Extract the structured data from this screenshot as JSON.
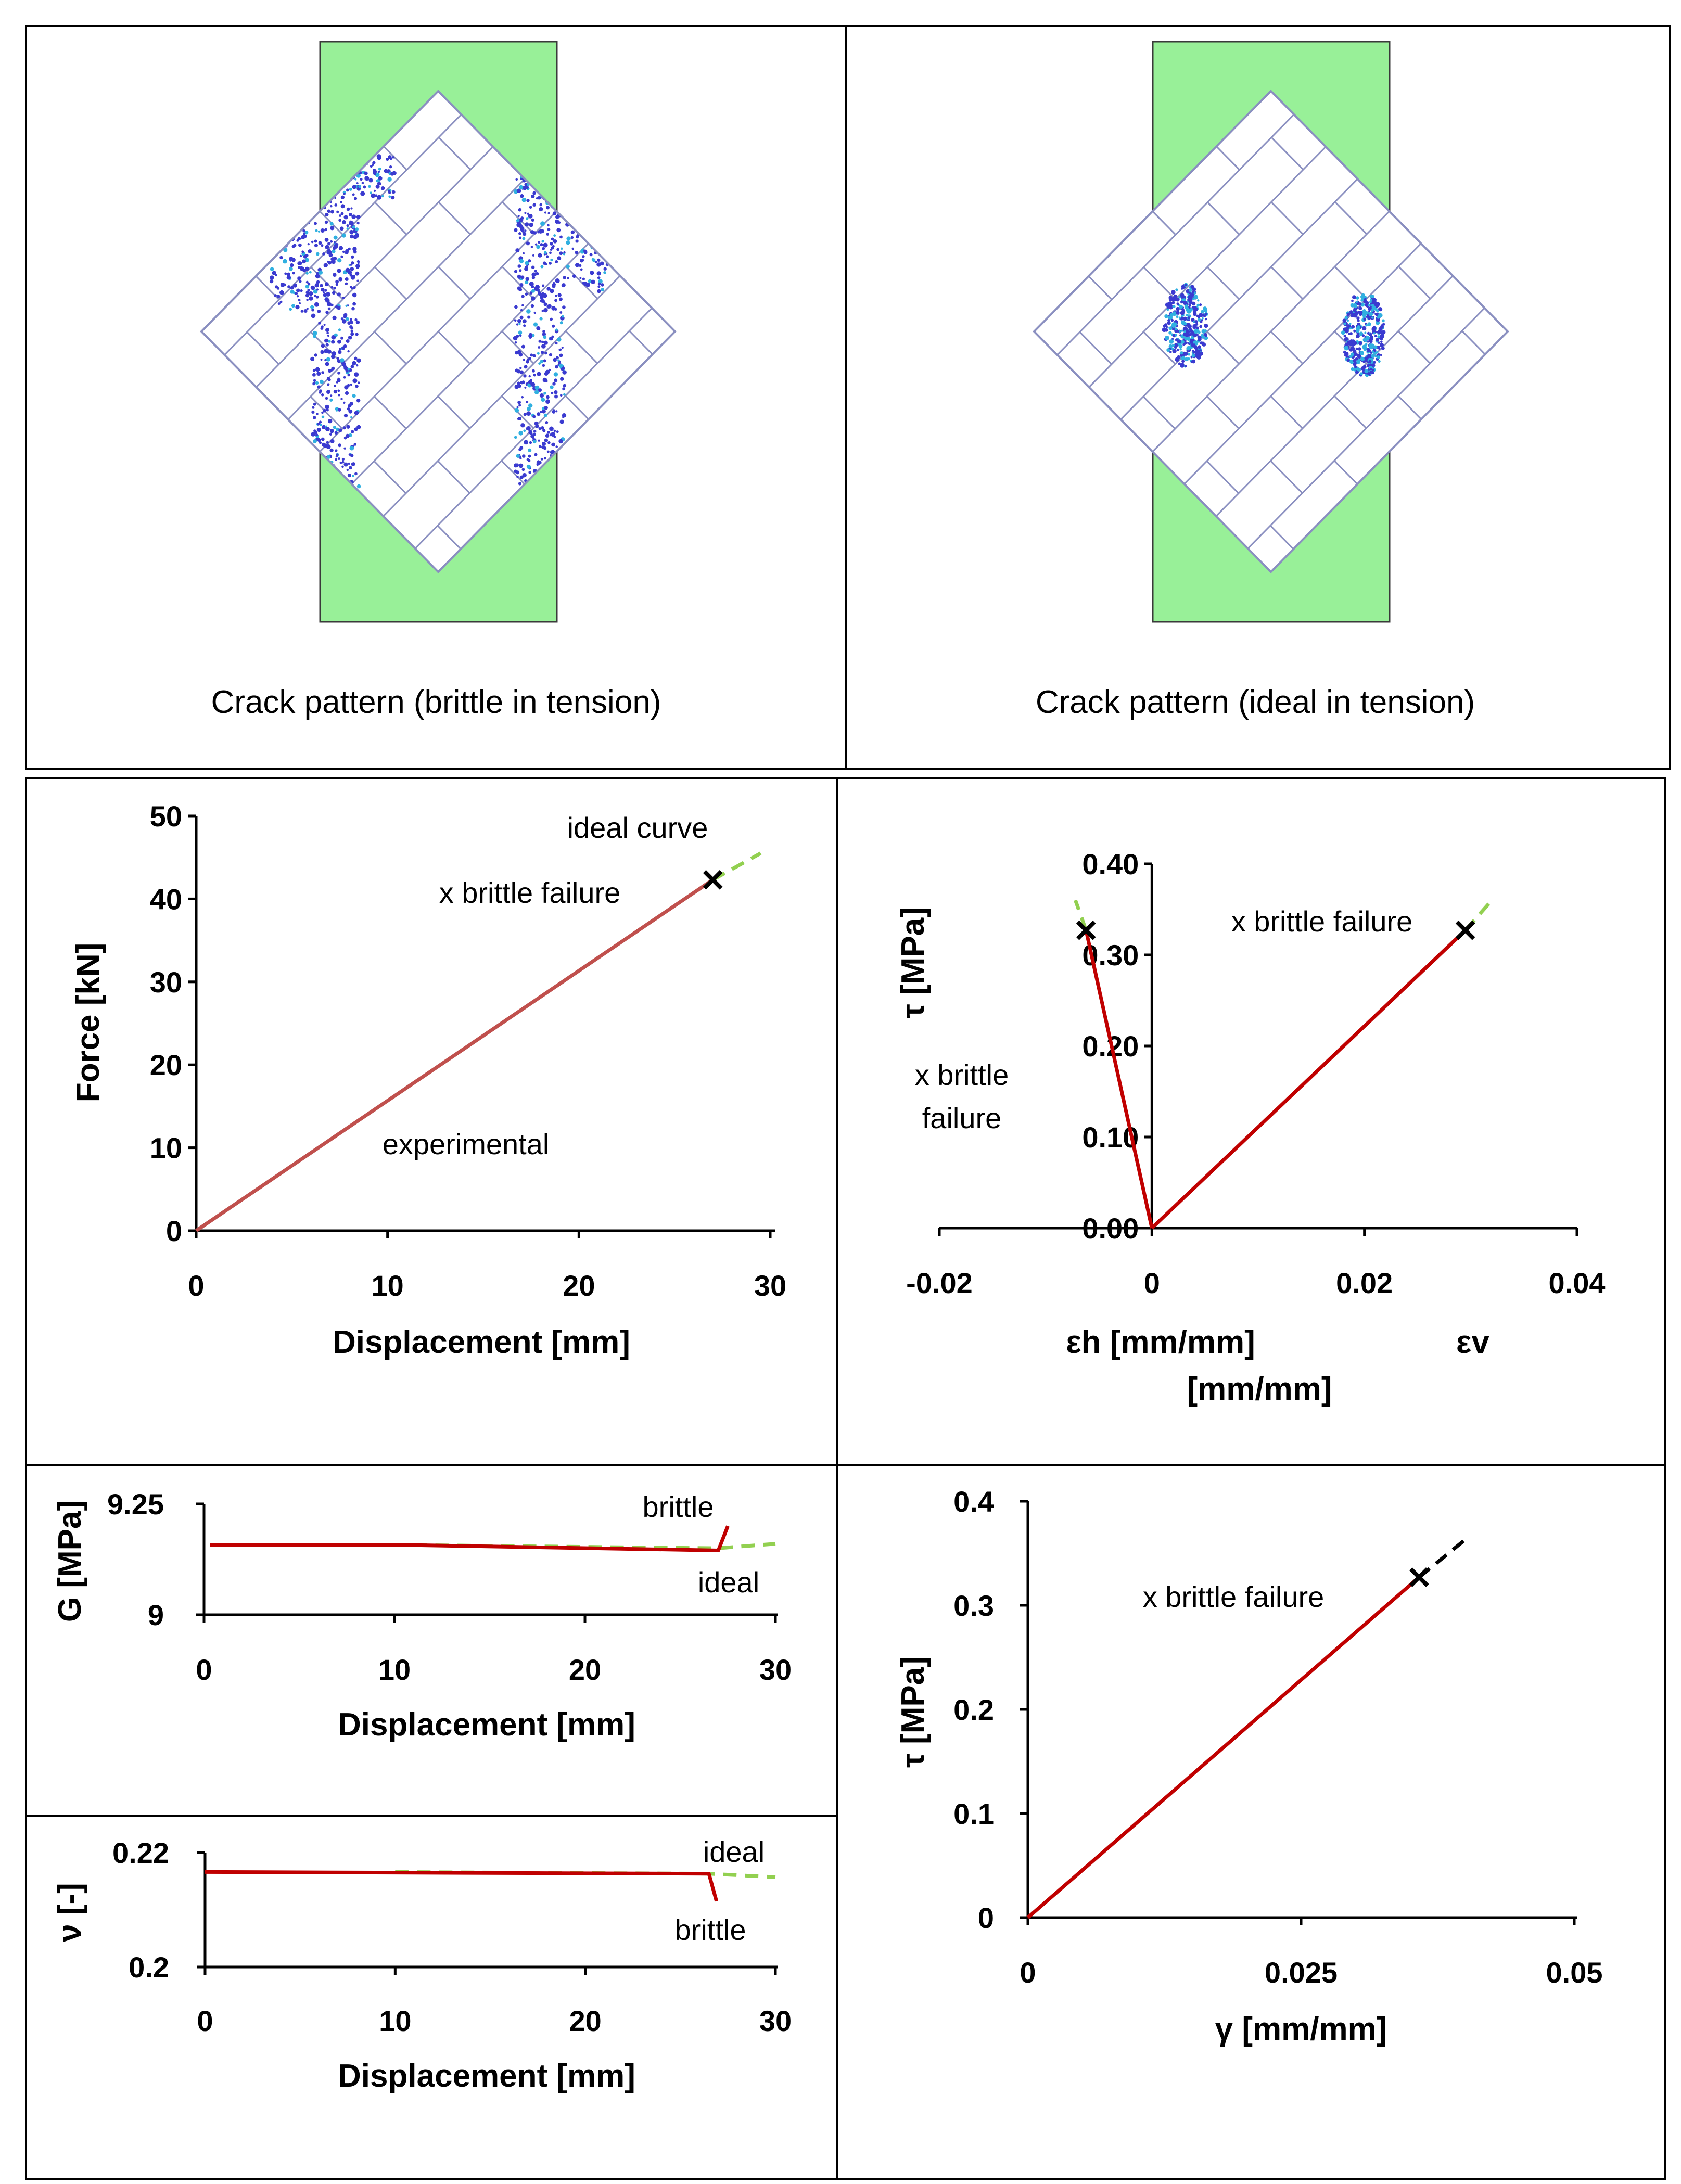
{
  "captions": {
    "left": "Crack pattern (brittle in tension)",
    "right": "Crack pattern (ideal in tension)"
  },
  "colors": {
    "experimental": "#c0504d",
    "brittle": "#c00000",
    "ideal": "#92d050",
    "support": "#98f098",
    "brick_edge": "#8a8fc0",
    "crack": "#3a3ad0"
  },
  "chart_data": [
    {
      "id": "force",
      "type": "line",
      "xlabel": "Displacement [mm]",
      "ylabel": "Force [kN]",
      "xlim": [
        0,
        30
      ],
      "ylim": [
        0,
        50
      ],
      "xticks": [
        "0",
        "10",
        "20",
        "30"
      ],
      "yticks": [
        "0",
        "10",
        "20",
        "30",
        "40",
        "50"
      ],
      "series": [
        {
          "name": "experimental",
          "style": "solid",
          "points": [
            [
              0,
              0
            ],
            [
              27,
              42.3
            ]
          ]
        },
        {
          "name": "ideal curve",
          "style": "dashed",
          "points": [
            [
              27,
              42.3
            ],
            [
              29.5,
              45.5
            ]
          ]
        }
      ],
      "failure_marker": [
        27,
        42.3
      ],
      "annotations": {
        "ideal": "ideal curve",
        "brittle": "x brittle failure",
        "experimental": "experimental"
      }
    },
    {
      "id": "tau-eps",
      "type": "line",
      "xlabel_h": "εh [mm/mm]",
      "xlabel_v": "εv",
      "xlabel_units": "[mm/mm]",
      "ylabel": "τ [MPa]",
      "xlim": [
        -0.02,
        0.04
      ],
      "ylim": [
        0,
        0.4
      ],
      "xticks": [
        "-0.02",
        "0",
        "0.02",
        "0.04"
      ],
      "yticks": [
        "0.00",
        "0.10",
        "0.20",
        "0.30",
        "0.40"
      ],
      "series": [
        {
          "name": "brittle εh",
          "style": "solid",
          "points": [
            [
              0,
              0
            ],
            [
              -0.0062,
              0.327
            ]
          ]
        },
        {
          "name": "ideal εh",
          "style": "dashed",
          "points": [
            [
              -0.0062,
              0.327
            ],
            [
              -0.0072,
              0.36
            ]
          ]
        },
        {
          "name": "brittle εv",
          "style": "solid",
          "points": [
            [
              0,
              0
            ],
            [
              0.0295,
              0.327
            ]
          ]
        },
        {
          "name": "ideal εv",
          "style": "dashed",
          "points": [
            [
              0.0295,
              0.327
            ],
            [
              0.032,
              0.36
            ]
          ]
        }
      ],
      "failure_markers": [
        [
          -0.0062,
          0.327
        ],
        [
          0.0295,
          0.327
        ]
      ],
      "annotations": {
        "right": "x brittle failure",
        "left_line1": "x brittle",
        "left_line2": "failure"
      }
    },
    {
      "id": "G",
      "type": "line",
      "xlabel": "Displacement [mm]",
      "ylabel": "G [MPa]",
      "xlim": [
        0,
        30
      ],
      "ylim": [
        9,
        9.25
      ],
      "xticks": [
        "0",
        "10",
        "20",
        "30"
      ],
      "yticks": [
        "9",
        "9.25"
      ],
      "series": [
        {
          "name": "brittle",
          "style": "solid",
          "points": [
            [
              0.3,
              9.157
            ],
            [
              11,
              9.157
            ],
            [
              27,
              9.145
            ],
            [
              27.5,
              9.2
            ]
          ]
        },
        {
          "name": "ideal",
          "style": "dashed",
          "points": [
            [
              11,
              9.157
            ],
            [
              27,
              9.15
            ],
            [
              30,
              9.16
            ]
          ]
        }
      ],
      "annotations": {
        "brittle": "brittle",
        "ideal": "ideal"
      }
    },
    {
      "id": "nu",
      "type": "line",
      "xlabel": "Displacement [mm]",
      "ylabel": "ν [-]",
      "xlim": [
        0,
        30
      ],
      "ylim": [
        0.2,
        0.22
      ],
      "xticks": [
        "0",
        "10",
        "20",
        "30"
      ],
      "yticks": [
        "0.2",
        "0.22"
      ],
      "series": [
        {
          "name": "brittle",
          "style": "solid",
          "points": [
            [
              0,
              0.2166
            ],
            [
              26.5,
              0.2163
            ],
            [
              26.9,
              0.2115
            ]
          ]
        },
        {
          "name": "ideal",
          "style": "dashed",
          "points": [
            [
              10,
              0.2166
            ],
            [
              26.5,
              0.2163
            ],
            [
              30,
              0.2157
            ]
          ]
        }
      ],
      "annotations": {
        "ideal": "ideal",
        "brittle": "brittle"
      }
    },
    {
      "id": "tau-gamma",
      "type": "line",
      "xlabel": "γ  [mm/mm]",
      "ylabel": "τ [MPa]",
      "xlim": [
        0,
        0.05
      ],
      "ylim": [
        0,
        0.4
      ],
      "xticks": [
        "0",
        "0.025",
        "0.05"
      ],
      "yticks": [
        "0",
        "0.1",
        "0.2",
        "0.3",
        "0.4"
      ],
      "series": [
        {
          "name": "brittle",
          "style": "solid",
          "points": [
            [
              0,
              0
            ],
            [
              0.0358,
              0.327
            ]
          ]
        },
        {
          "name": "ideal",
          "style": "dashed",
          "points": [
            [
              0.0358,
              0.327
            ],
            [
              0.04,
              0.363
            ]
          ]
        }
      ],
      "failure_marker": [
        0.0358,
        0.327
      ],
      "annotations": {
        "brittle": "x brittle failure"
      }
    }
  ]
}
